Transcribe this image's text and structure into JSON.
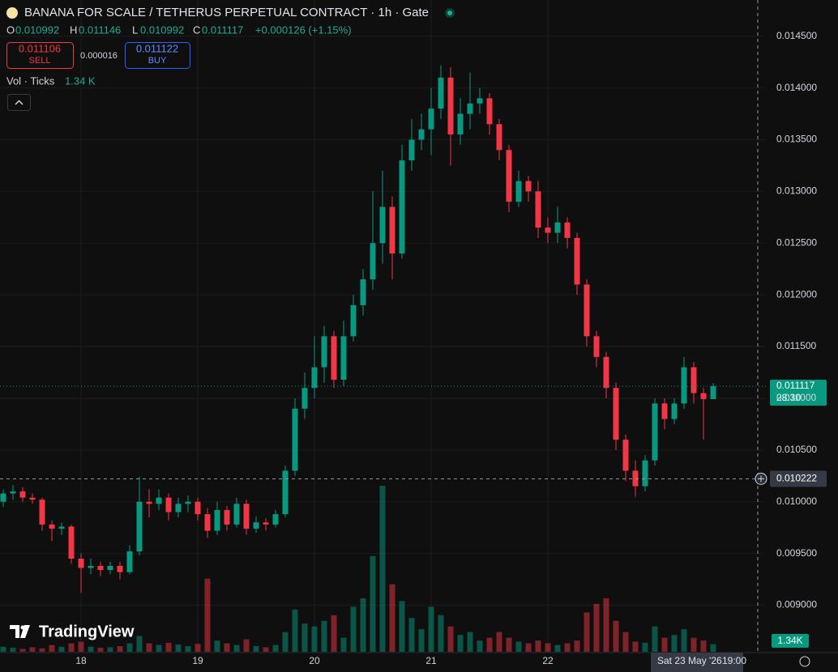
{
  "header": {
    "title": "BANANA FOR SCALE / TETHERUS PERPETUAL CONTRACT · 1h · Gate",
    "o": "O",
    "h": "H",
    "l": "L",
    "c": "C",
    "change": "+0.000126 (+1.15%)",
    "sell_price": "0.011106",
    "sell": "SELL",
    "spread": "0.000016",
    "buy_price": "0.011122",
    "buy": "BUY",
    "vol_label": "Vol · Ticks",
    "vol_value": "1.34 K",
    "countdown": "28:30",
    "date_label": "Sat 23 May '26",
    "time_label": "19:00",
    "logo": "TradingView"
  },
  "chart_data": {
    "type": "candlestick",
    "x_labels": [
      "18",
      "19",
      "20",
      "21",
      "22"
    ],
    "open": [
      0.01,
      0.01008,
      0.0101,
      0.01004,
      0.01002,
      0.00978,
      0.00974,
      0.00976,
      0.00945,
      0.00936,
      0.00938,
      0.00934,
      0.00938,
      0.00932,
      0.00952,
      0.01,
      0.00998,
      0.01004,
      0.0099,
      0.00998,
      0.01,
      0.00988,
      0.00972,
      0.00992,
      0.00978,
      0.00998,
      0.00974,
      0.0098,
      0.00978,
      0.00988,
      0.0103,
      0.0109,
      0.0111,
      0.0113,
      0.0116,
      0.01118,
      0.0116,
      0.0119,
      0.01215,
      0.0125,
      0.01285,
      0.0124,
      0.0133,
      0.0135,
      0.0136,
      0.0138,
      0.0141,
      0.01355,
      0.01375,
      0.01385,
      0.0139,
      0.01365,
      0.0134,
      0.0129,
      0.0131,
      0.013,
      0.01265,
      0.0126,
      0.0127,
      0.01255,
      0.0121,
      0.0116,
      0.0114,
      0.0111,
      0.0106,
      0.0103,
      0.01015,
      0.0104,
      0.01095,
      0.0108,
      0.01095,
      0.0113,
      0.01105,
      0.010992
    ],
    "high": [
      0.01012,
      0.01016,
      0.01014,
      0.01008,
      0.01004,
      0.00982,
      0.0098,
      0.00978,
      0.0095,
      0.00945,
      0.00942,
      0.00942,
      0.00942,
      0.00958,
      0.01024,
      0.01012,
      0.01012,
      0.01008,
      0.01004,
      0.01006,
      0.01004,
      0.00994,
      0.01,
      0.00996,
      0.01004,
      0.01002,
      0.00986,
      0.00984,
      0.00992,
      0.01035,
      0.011,
      0.01125,
      0.0116,
      0.0117,
      0.01165,
      0.01175,
      0.012,
      0.01225,
      0.013,
      0.0132,
      0.01295,
      0.01345,
      0.0137,
      0.01375,
      0.014,
      0.01422,
      0.0142,
      0.0139,
      0.01415,
      0.014,
      0.01395,
      0.0137,
      0.01345,
      0.0132,
      0.01315,
      0.0131,
      0.01275,
      0.01285,
      0.01275,
      0.0126,
      0.01215,
      0.01165,
      0.01145,
      0.01115,
      0.01065,
      0.0104,
      0.01045,
      0.011,
      0.011,
      0.011,
      0.0114,
      0.01135,
      0.0111,
      0.011146
    ],
    "low": [
      0.00995,
      0.01002,
      0.01,
      0.00998,
      0.00972,
      0.00962,
      0.00968,
      0.0094,
      0.00912,
      0.0093,
      0.00928,
      0.0093,
      0.00925,
      0.0093,
      0.00948,
      0.00985,
      0.00992,
      0.00982,
      0.00985,
      0.0099,
      0.00982,
      0.00965,
      0.00968,
      0.00972,
      0.00975,
      0.00968,
      0.0097,
      0.00972,
      0.00975,
      0.00985,
      0.01025,
      0.0108,
      0.011,
      0.01115,
      0.0111,
      0.01112,
      0.01155,
      0.0118,
      0.01205,
      0.0123,
      0.01215,
      0.01235,
      0.0132,
      0.0134,
      0.01335,
      0.0137,
      0.01325,
      0.01345,
      0.0136,
      0.01375,
      0.01355,
      0.0133,
      0.0128,
      0.01285,
      0.0129,
      0.01255,
      0.0125,
      0.0125,
      0.01245,
      0.012,
      0.0115,
      0.0113,
      0.011,
      0.0105,
      0.0102,
      0.01005,
      0.0101,
      0.01035,
      0.0107,
      0.01075,
      0.0109,
      0.01095,
      0.0106,
      0.010992
    ],
    "close": [
      0.01008,
      0.0101,
      0.01004,
      0.01002,
      0.00978,
      0.00974,
      0.00976,
      0.00945,
      0.00936,
      0.00938,
      0.00934,
      0.00938,
      0.00932,
      0.00952,
      0.01,
      0.00998,
      0.01004,
      0.0099,
      0.00998,
      0.01,
      0.00988,
      0.00972,
      0.00992,
      0.00978,
      0.00998,
      0.00974,
      0.0098,
      0.00978,
      0.00988,
      0.0103,
      0.0109,
      0.0111,
      0.0113,
      0.0116,
      0.01118,
      0.0116,
      0.0119,
      0.01215,
      0.0125,
      0.01285,
      0.0124,
      0.0133,
      0.0135,
      0.0136,
      0.0138,
      0.0141,
      0.01355,
      0.01375,
      0.01385,
      0.0139,
      0.01365,
      0.0134,
      0.0129,
      0.0131,
      0.013,
      0.01265,
      0.0126,
      0.0127,
      0.01255,
      0.0121,
      0.0116,
      0.0114,
      0.0111,
      0.0106,
      0.0103,
      0.01015,
      0.0104,
      0.01095,
      0.0108,
      0.01095,
      0.0113,
      0.01105,
      0.010992,
      0.011117
    ],
    "volume": [
      900,
      700,
      500,
      800,
      600,
      1200,
      900,
      1500,
      1800,
      900,
      700,
      800,
      1000,
      1500,
      2800,
      1500,
      1200,
      1600,
      1300,
      1000,
      1400,
      13000,
      2000,
      1500,
      1200,
      2200,
      1000,
      800,
      1200,
      3500,
      7500,
      5000,
      4500,
      5500,
      6500,
      2500,
      8000,
      9500,
      17000,
      29500,
      12000,
      9000,
      6000,
      4000,
      8000,
      6500,
      4500,
      3000,
      3500,
      2000,
      2500,
      3500,
      2500,
      1800,
      1500,
      2000,
      1500,
      1200,
      1500,
      2000,
      7000,
      8500,
      9500,
      5500,
      3500,
      1800,
      1600,
      4500,
      2500,
      3000,
      4000,
      2500,
      2000,
      1340
    ],
    "volume_last_label": "1.34K",
    "up_color": "#089981",
    "down_color": "#f23645",
    "ylim": [
      0.00855,
      0.01485
    ],
    "yticks": [
      {
        "value": 0.009,
        "label": "0.009000"
      },
      {
        "value": 0.0095,
        "label": "0.009500"
      },
      {
        "value": 0.01,
        "label": "0.010000"
      },
      {
        "value": 0.0105,
        "label": "0.010500"
      },
      {
        "value": 0.011,
        "label": "0.011000"
      },
      {
        "value": 0.0115,
        "label": "0.011500"
      },
      {
        "value": 0.012,
        "label": "0.012000"
      },
      {
        "value": 0.0125,
        "label": "0.012500"
      },
      {
        "value": 0.013,
        "label": "0.013000"
      },
      {
        "value": 0.0135,
        "label": "0.013500"
      },
      {
        "value": 0.014,
        "label": "0.014000"
      },
      {
        "value": 0.0145,
        "label": "0.014500"
      }
    ],
    "crosshair_price": 0.010222,
    "grid": true
  }
}
